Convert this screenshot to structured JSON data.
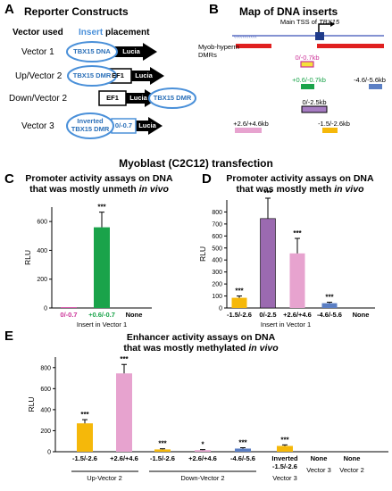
{
  "panel_labels": {
    "a": "A",
    "b": "B",
    "c": "C",
    "d": "D",
    "e": "E"
  },
  "panel_a": {
    "title": "Reporter Constructs",
    "col_vector": "Vector used",
    "col_insert_word": "Insert",
    "col_placement_word": " placement",
    "rows": [
      {
        "vector": "Vector 1",
        "insert": "TBX15 DNA",
        "arrow": "Lucia"
      },
      {
        "vector": "Up/Vector 2",
        "insert": "TBX15 DMR",
        "promoter": "EF1",
        "arrow": "Lucia"
      },
      {
        "vector": "Down/Vector 2",
        "promoter": "EF1",
        "arrow": "Lucia",
        "insert": "TBX15 DMR"
      },
      {
        "vector": "Vector 3",
        "insert_line1": "Inverted",
        "insert_line2": "TBX15 DMR",
        "small_insert": "0/-0.7",
        "arrow": "Lucia"
      }
    ]
  },
  "panel_b": {
    "title": "Map of DNA inserts",
    "tss_prefix": "Main TSS of ",
    "tss_gene": "TBX15",
    "dmr_line1": "Myob-hyperm",
    "dmr_line2": "DMRs",
    "segments": [
      {
        "label": "0/-0.7kb",
        "color": "#f4e23a",
        "label_color": "#cc3399"
      },
      {
        "label": "+0.6/-0.7kb",
        "color": "#1aa34a",
        "label_color": "#1aa34a"
      },
      {
        "label": "-4.6/-5.6kb",
        "color": "#5b7fc4",
        "label_color": "#000000"
      },
      {
        "label": "0/-2.5kb",
        "color": "#a67cc2",
        "label_color": "#000000"
      },
      {
        "label": "+2.6/+4.6kb",
        "color": "#e7a3cf",
        "label_color": "#000000"
      },
      {
        "label": "-1.5/-2.6kb",
        "color": "#f5b80a",
        "label_color": "#000000"
      }
    ]
  },
  "section_title": "Myoblast (C2C12) transfection",
  "panel_c": {
    "title_line1": "Promoter activity assays on DNA",
    "title_line2_prefix": "that was mostly unmeth ",
    "title_line2_italic": "in vivo",
    "xgroup": "Insert in Vector 1",
    "chart_data": {
      "type": "bar",
      "categories": [
        "0/-0.7",
        "+0.6/-0.7",
        "None"
      ],
      "values": [
        5,
        560,
        0
      ],
      "errors": [
        0,
        105,
        0
      ],
      "colors": [
        "#cc3399",
        "#1aa34a",
        "#000000"
      ],
      "significance": [
        "",
        "***",
        ""
      ],
      "ylabel": "RLU",
      "ylim": [
        0,
        700
      ],
      "yticks": [
        "0",
        "200",
        "400",
        "600"
      ]
    }
  },
  "panel_d": {
    "title_line1": "Promoter activity assays on DNA",
    "title_line2_prefix": "that was mostly meth ",
    "title_line2_italic": "in vivo",
    "xgroup": "Insert in Vector 1",
    "chart_data": {
      "type": "bar",
      "categories": [
        "-1.5/-2.6",
        "0/-2.5",
        "+2.6/+4.6",
        "-4.6/-5.6",
        "None"
      ],
      "values": [
        85,
        745,
        455,
        40,
        0
      ],
      "errors": [
        15,
        170,
        125,
        8,
        0
      ],
      "colors": [
        "#f5b80a",
        "#9b6ab0",
        "#e7a3cf",
        "#5b7fc4",
        "#000000"
      ],
      "significance": [
        "***",
        "***",
        "***",
        "***",
        ""
      ],
      "ylabel": "RLU",
      "ylim": [
        0,
        900
      ],
      "yticks": [
        "0",
        "100",
        "200",
        "300",
        "400",
        "500",
        "600",
        "700",
        "800"
      ]
    }
  },
  "panel_e": {
    "title_line1": "Enhancer activity assays on DNA",
    "title_line2_prefix": "that was mostly methylated ",
    "title_line2_italic": "in vivo",
    "groups": [
      {
        "label": "Up-Vector 2"
      },
      {
        "label": "Down-Vector 2"
      },
      {
        "label": "Vector 3"
      },
      {
        "label": "Vector 3"
      },
      {
        "label": "Vector 2"
      }
    ],
    "chart_data": {
      "type": "bar",
      "categories": [
        "-1.5/-2.6",
        "+2.6/+4.6",
        "-1.5/-2.6",
        "+2.6/+4.6",
        "-4.6/-5.6",
        "Inverted -1.5/-2.6",
        "None",
        "None"
      ],
      "category_lines": [
        [
          "-1.5/-2.6"
        ],
        [
          "+2.6/+4.6"
        ],
        [
          "-1.5/-2.6"
        ],
        [
          "+2.6/+4.6"
        ],
        [
          "-4.6/-5.6"
        ],
        [
          "Inverted",
          "-1.5/-2.6"
        ],
        [
          "None"
        ],
        [
          "None"
        ]
      ],
      "values": [
        270,
        745,
        22,
        15,
        30,
        55,
        0,
        0
      ],
      "errors": [
        35,
        85,
        6,
        5,
        8,
        10,
        0,
        0
      ],
      "colors": [
        "#f5b80a",
        "#e7a3cf",
        "#f5b80a",
        "#e7a3cf",
        "#5b7fc4",
        "#f5b80a",
        "#000000",
        "#000000"
      ],
      "significance": [
        "***",
        "***",
        "***",
        "*",
        "***",
        "***",
        "",
        ""
      ],
      "ylabel": "RLU",
      "ylim": [
        0,
        900
      ],
      "yticks": [
        "0",
        "200",
        "400",
        "600",
        "800"
      ]
    }
  }
}
